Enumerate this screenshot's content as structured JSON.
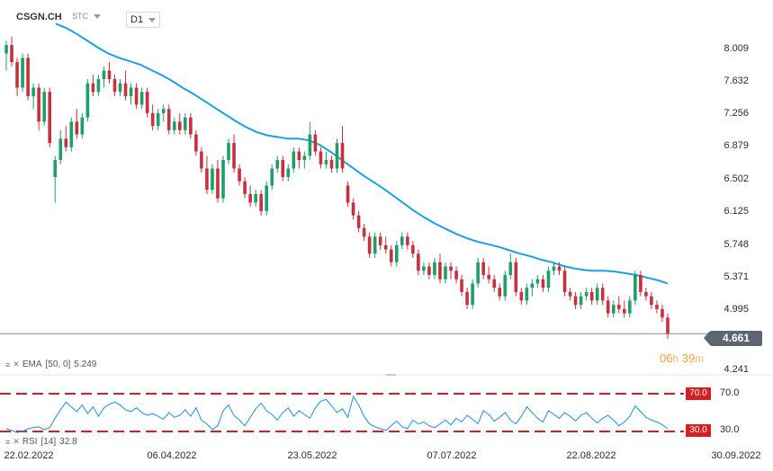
{
  "header": {
    "symbol": "CSGN.CH",
    "source": "STC",
    "timeframe": "D1"
  },
  "price_axis": {
    "ticks": [
      "8.009",
      "7.632",
      "7.256",
      "6.879",
      "6.502",
      "6.125",
      "5.748",
      "5.371",
      "4.995",
      "4.241"
    ],
    "current_price": "4.661"
  },
  "timer": {
    "hours": "06",
    "h_unit": "h",
    "minutes": "39",
    "m_unit": "m"
  },
  "time_axis": {
    "ticks": [
      "22.02.2022",
      "06.04.2022",
      "23.05.2022",
      "07.07.2022",
      "22.08.2022",
      "30.09.2022"
    ]
  },
  "ema_legend": {
    "name": "EMA",
    "params": "[50, 0]",
    "value": "5.249"
  },
  "rsi_legend": {
    "name": "RSI",
    "params": "[14]",
    "value": "32.8"
  },
  "rsi_levels": {
    "upper": "70.0",
    "lower": "30.0",
    "upper_axis": "70.0",
    "lower_axis": "30.0"
  },
  "colors": {
    "up": "#1e9e6a",
    "down": "#c8313c",
    "ema": "#1ba1e6",
    "rsi": "#1f8de0",
    "level": "#d42020",
    "price_badge": "#5c6670",
    "timer": "#e8a531"
  },
  "chart_data": {
    "type": "candlestick",
    "x_range": [
      "22.02.2022",
      "30.09.2022"
    ],
    "ylim": [
      4.241,
      8.2
    ],
    "candles": [
      {
        "o": 7.95,
        "h": 8.1,
        "l": 7.75,
        "c": 8.05
      },
      {
        "o": 8.05,
        "h": 8.15,
        "l": 7.8,
        "c": 7.85
      },
      {
        "o": 7.85,
        "h": 7.9,
        "l": 7.45,
        "c": 7.55
      },
      {
        "o": 7.55,
        "h": 7.95,
        "l": 7.5,
        "c": 7.9
      },
      {
        "o": 7.9,
        "h": 7.95,
        "l": 7.4,
        "c": 7.45
      },
      {
        "o": 7.45,
        "h": 7.6,
        "l": 7.3,
        "c": 7.55
      },
      {
        "o": 7.55,
        "h": 7.6,
        "l": 7.05,
        "c": 7.15
      },
      {
        "o": 7.15,
        "h": 7.55,
        "l": 7.1,
        "c": 7.5
      },
      {
        "o": 7.5,
        "h": 7.55,
        "l": 6.85,
        "c": 6.9
      },
      {
        "o": 6.5,
        "h": 6.75,
        "l": 6.2,
        "c": 6.7
      },
      {
        "o": 6.7,
        "h": 7.05,
        "l": 6.65,
        "c": 6.95
      },
      {
        "o": 6.95,
        "h": 7.1,
        "l": 6.8,
        "c": 6.85
      },
      {
        "o": 6.85,
        "h": 7.2,
        "l": 6.8,
        "c": 7.15
      },
      {
        "o": 7.15,
        "h": 7.3,
        "l": 6.95,
        "c": 7.0
      },
      {
        "o": 7.0,
        "h": 7.25,
        "l": 6.95,
        "c": 7.2
      },
      {
        "o": 7.2,
        "h": 7.65,
        "l": 7.15,
        "c": 7.6
      },
      {
        "o": 7.6,
        "h": 7.7,
        "l": 7.45,
        "c": 7.5
      },
      {
        "o": 7.5,
        "h": 7.7,
        "l": 7.45,
        "c": 7.65
      },
      {
        "o": 7.65,
        "h": 7.8,
        "l": 7.55,
        "c": 7.75
      },
      {
        "o": 7.75,
        "h": 7.85,
        "l": 7.6,
        "c": 7.65
      },
      {
        "o": 7.65,
        "h": 7.7,
        "l": 7.45,
        "c": 7.5
      },
      {
        "o": 7.5,
        "h": 7.65,
        "l": 7.45,
        "c": 7.6
      },
      {
        "o": 7.6,
        "h": 7.75,
        "l": 7.4,
        "c": 7.45
      },
      {
        "o": 7.45,
        "h": 7.6,
        "l": 7.35,
        "c": 7.55
      },
      {
        "o": 7.55,
        "h": 7.6,
        "l": 7.3,
        "c": 7.35
      },
      {
        "o": 7.35,
        "h": 7.55,
        "l": 7.3,
        "c": 7.5
      },
      {
        "o": 7.5,
        "h": 7.55,
        "l": 7.2,
        "c": 7.25
      },
      {
        "o": 7.25,
        "h": 7.35,
        "l": 7.05,
        "c": 7.1
      },
      {
        "o": 7.1,
        "h": 7.3,
        "l": 7.05,
        "c": 7.25
      },
      {
        "o": 7.25,
        "h": 7.35,
        "l": 7.15,
        "c": 7.3
      },
      {
        "o": 7.3,
        "h": 7.35,
        "l": 7.0,
        "c": 7.05
      },
      {
        "o": 7.05,
        "h": 7.2,
        "l": 7.0,
        "c": 7.15
      },
      {
        "o": 7.15,
        "h": 7.25,
        "l": 7.0,
        "c": 7.05
      },
      {
        "o": 7.05,
        "h": 7.25,
        "l": 7.0,
        "c": 7.2
      },
      {
        "o": 7.2,
        "h": 7.25,
        "l": 6.95,
        "c": 7.0
      },
      {
        "o": 7.0,
        "h": 7.05,
        "l": 6.75,
        "c": 6.8
      },
      {
        "o": 6.8,
        "h": 6.85,
        "l": 6.55,
        "c": 6.6
      },
      {
        "o": 6.6,
        "h": 6.75,
        "l": 6.3,
        "c": 6.35
      },
      {
        "o": 6.35,
        "h": 6.65,
        "l": 6.3,
        "c": 6.6
      },
      {
        "o": 6.6,
        "h": 6.7,
        "l": 6.2,
        "c": 6.25
      },
      {
        "o": 6.25,
        "h": 6.75,
        "l": 6.2,
        "c": 6.7
      },
      {
        "o": 6.7,
        "h": 6.95,
        "l": 6.65,
        "c": 6.9
      },
      {
        "o": 6.9,
        "h": 7.0,
        "l": 6.55,
        "c": 6.6
      },
      {
        "o": 6.6,
        "h": 6.65,
        "l": 6.4,
        "c": 6.45
      },
      {
        "o": 6.45,
        "h": 6.5,
        "l": 6.25,
        "c": 6.3
      },
      {
        "o": 6.3,
        "h": 6.4,
        "l": 6.15,
        "c": 6.2
      },
      {
        "o": 6.2,
        "h": 6.35,
        "l": 6.15,
        "c": 6.3
      },
      {
        "o": 6.3,
        "h": 6.35,
        "l": 6.05,
        "c": 6.1
      },
      {
        "o": 6.1,
        "h": 6.45,
        "l": 6.05,
        "c": 6.4
      },
      {
        "o": 6.4,
        "h": 6.65,
        "l": 6.35,
        "c": 6.6
      },
      {
        "o": 6.6,
        "h": 6.75,
        "l": 6.55,
        "c": 6.7
      },
      {
        "o": 6.7,
        "h": 6.75,
        "l": 6.45,
        "c": 6.5
      },
      {
        "o": 6.5,
        "h": 6.65,
        "l": 6.45,
        "c": 6.6
      },
      {
        "o": 6.6,
        "h": 6.85,
        "l": 6.55,
        "c": 6.8
      },
      {
        "o": 6.8,
        "h": 6.85,
        "l": 6.6,
        "c": 6.7
      },
      {
        "o": 6.7,
        "h": 6.8,
        "l": 6.6,
        "c": 6.75
      },
      {
        "o": 6.75,
        "h": 7.15,
        "l": 6.7,
        "c": 7.0
      },
      {
        "o": 7.0,
        "h": 7.05,
        "l": 6.75,
        "c": 6.8
      },
      {
        "o": 6.8,
        "h": 6.85,
        "l": 6.6,
        "c": 6.65
      },
      {
        "o": 6.65,
        "h": 6.8,
        "l": 6.6,
        "c": 6.7
      },
      {
        "o": 6.7,
        "h": 6.75,
        "l": 6.55,
        "c": 6.6
      },
      {
        "o": 6.6,
        "h": 6.95,
        "l": 6.55,
        "c": 6.9
      },
      {
        "o": 6.9,
        "h": 7.1,
        "l": 6.55,
        "c": 6.6
      },
      {
        "o": 6.4,
        "h": 6.45,
        "l": 6.15,
        "c": 6.2
      },
      {
        "o": 6.2,
        "h": 6.25,
        "l": 6.0,
        "c": 6.05
      },
      {
        "o": 6.05,
        "h": 6.1,
        "l": 5.85,
        "c": 5.9
      },
      {
        "o": 5.9,
        "h": 5.95,
        "l": 5.75,
        "c": 5.8
      },
      {
        "o": 5.8,
        "h": 5.85,
        "l": 5.55,
        "c": 5.6
      },
      {
        "o": 5.6,
        "h": 5.85,
        "l": 5.55,
        "c": 5.8
      },
      {
        "o": 5.8,
        "h": 5.85,
        "l": 5.65,
        "c": 5.7
      },
      {
        "o": 5.7,
        "h": 5.8,
        "l": 5.6,
        "c": 5.65
      },
      {
        "o": 5.65,
        "h": 5.7,
        "l": 5.45,
        "c": 5.5
      },
      {
        "o": 5.5,
        "h": 5.75,
        "l": 5.45,
        "c": 5.7
      },
      {
        "o": 5.7,
        "h": 5.85,
        "l": 5.65,
        "c": 5.8
      },
      {
        "o": 5.8,
        "h": 5.85,
        "l": 5.65,
        "c": 5.7
      },
      {
        "o": 5.7,
        "h": 5.75,
        "l": 5.55,
        "c": 5.6
      },
      {
        "o": 5.6,
        "h": 5.65,
        "l": 5.35,
        "c": 5.4
      },
      {
        "o": 5.4,
        "h": 5.5,
        "l": 5.35,
        "c": 5.45
      },
      {
        "o": 5.45,
        "h": 5.5,
        "l": 5.3,
        "c": 5.35
      },
      {
        "o": 5.35,
        "h": 5.55,
        "l": 5.3,
        "c": 5.5
      },
      {
        "o": 5.5,
        "h": 5.6,
        "l": 5.25,
        "c": 5.3
      },
      {
        "o": 5.3,
        "h": 5.5,
        "l": 5.25,
        "c": 5.45
      },
      {
        "o": 5.45,
        "h": 5.5,
        "l": 5.3,
        "c": 5.4
      },
      {
        "o": 5.4,
        "h": 5.45,
        "l": 5.25,
        "c": 5.3
      },
      {
        "o": 5.3,
        "h": 5.35,
        "l": 5.1,
        "c": 5.15
      },
      {
        "o": 5.15,
        "h": 5.2,
        "l": 4.95,
        "c": 5.0
      },
      {
        "o": 5.0,
        "h": 5.3,
        "l": 4.95,
        "c": 5.25
      },
      {
        "o": 5.25,
        "h": 5.55,
        "l": 5.2,
        "c": 5.5
      },
      {
        "o": 5.5,
        "h": 5.55,
        "l": 5.3,
        "c": 5.35
      },
      {
        "o": 5.35,
        "h": 5.45,
        "l": 5.25,
        "c": 5.3
      },
      {
        "o": 5.3,
        "h": 5.35,
        "l": 5.15,
        "c": 5.2
      },
      {
        "o": 5.2,
        "h": 5.25,
        "l": 5.05,
        "c": 5.1
      },
      {
        "o": 5.1,
        "h": 5.4,
        "l": 5.05,
        "c": 5.35
      },
      {
        "o": 5.35,
        "h": 5.6,
        "l": 5.3,
        "c": 5.5
      },
      {
        "o": 5.5,
        "h": 5.55,
        "l": 5.1,
        "c": 5.15
      },
      {
        "o": 5.15,
        "h": 5.2,
        "l": 5.0,
        "c": 5.05
      },
      {
        "o": 5.05,
        "h": 5.25,
        "l": 5.0,
        "c": 5.2
      },
      {
        "o": 5.2,
        "h": 5.3,
        "l": 5.1,
        "c": 5.25
      },
      {
        "o": 5.25,
        "h": 5.35,
        "l": 5.2,
        "c": 5.3
      },
      {
        "o": 5.3,
        "h": 5.35,
        "l": 5.15,
        "c": 5.2
      },
      {
        "o": 5.2,
        "h": 5.45,
        "l": 5.15,
        "c": 5.4
      },
      {
        "o": 5.4,
        "h": 5.5,
        "l": 5.35,
        "c": 5.45
      },
      {
        "o": 5.45,
        "h": 5.5,
        "l": 5.35,
        "c": 5.4
      },
      {
        "o": 5.4,
        "h": 5.45,
        "l": 5.1,
        "c": 5.15
      },
      {
        "o": 5.15,
        "h": 5.2,
        "l": 5.05,
        "c": 5.1
      },
      {
        "o": 5.1,
        "h": 5.15,
        "l": 4.95,
        "c": 5.0
      },
      {
        "o": 5.0,
        "h": 5.15,
        "l": 4.95,
        "c": 5.1
      },
      {
        "o": 5.1,
        "h": 5.2,
        "l": 5.05,
        "c": 5.15
      },
      {
        "o": 5.15,
        "h": 5.2,
        "l": 5.0,
        "c": 5.05
      },
      {
        "o": 5.05,
        "h": 5.25,
        "l": 5.0,
        "c": 5.2
      },
      {
        "o": 5.2,
        "h": 5.25,
        "l": 5.0,
        "c": 5.05
      },
      {
        "o": 5.05,
        "h": 5.1,
        "l": 4.85,
        "c": 4.9
      },
      {
        "o": 4.9,
        "h": 5.05,
        "l": 4.85,
        "c": 5.0
      },
      {
        "o": 5.0,
        "h": 5.1,
        "l": 4.9,
        "c": 4.95
      },
      {
        "o": 4.95,
        "h": 5.05,
        "l": 4.85,
        "c": 4.9
      },
      {
        "o": 4.9,
        "h": 5.1,
        "l": 4.85,
        "c": 5.05
      },
      {
        "o": 5.05,
        "h": 5.4,
        "l": 5.0,
        "c": 5.35
      },
      {
        "o": 5.35,
        "h": 5.4,
        "l": 5.1,
        "c": 5.15
      },
      {
        "o": 5.15,
        "h": 5.2,
        "l": 5.05,
        "c": 5.1
      },
      {
        "o": 5.1,
        "h": 5.15,
        "l": 4.95,
        "c": 5.0
      },
      {
        "o": 5.0,
        "h": 5.05,
        "l": 4.9,
        "c": 4.95
      },
      {
        "o": 4.95,
        "h": 5.0,
        "l": 4.8,
        "c": 4.85
      },
      {
        "o": 4.85,
        "h": 4.9,
        "l": 4.6,
        "c": 4.66
      }
    ],
    "ema": [
      8.3,
      8.25,
      8.18,
      8.1,
      8.02,
      7.95,
      7.9,
      7.86,
      7.82,
      7.76,
      7.7,
      7.63,
      7.55,
      7.48,
      7.4,
      7.32,
      7.24,
      7.16,
      7.09,
      7.03,
      6.99,
      6.97,
      6.95,
      6.95,
      6.93,
      6.88,
      6.8,
      6.71,
      6.62,
      6.53,
      6.45,
      6.37,
      6.28,
      6.19,
      6.1,
      6.02,
      5.95,
      5.89,
      5.83,
      5.78,
      5.74,
      5.71,
      5.68,
      5.64,
      5.6,
      5.57,
      5.53,
      5.5,
      5.46,
      5.43,
      5.41,
      5.4,
      5.4,
      5.39,
      5.37,
      5.35,
      5.32,
      5.29,
      5.25
    ],
    "rsi": [
      33,
      31,
      29,
      30,
      33,
      34,
      35,
      32,
      34,
      44,
      53,
      61,
      56,
      51,
      58,
      49,
      56,
      46,
      55,
      59,
      61,
      58,
      53,
      51,
      55,
      50,
      47,
      49,
      46,
      43,
      50,
      45,
      47,
      53,
      46,
      55,
      42,
      38,
      32,
      36,
      52,
      58,
      47,
      42,
      36,
      45,
      54,
      60,
      52,
      48,
      42,
      50,
      55,
      46,
      52,
      48,
      44,
      55,
      62,
      64,
      57,
      50,
      54,
      45,
      67,
      58,
      46,
      38,
      35,
      33,
      31,
      36,
      41,
      35,
      33,
      42,
      38,
      40,
      36,
      34,
      38,
      42,
      37,
      44,
      40,
      47,
      43,
      38,
      52,
      48,
      41,
      45,
      50,
      42,
      38,
      46,
      56,
      50,
      44,
      40,
      52,
      48,
      44,
      50,
      46,
      41,
      47,
      50,
      44,
      39,
      44,
      47,
      42,
      36,
      40,
      46,
      57,
      51,
      45,
      42,
      40,
      37,
      32.8
    ],
    "rsi_ylim": [
      15,
      82
    ]
  }
}
